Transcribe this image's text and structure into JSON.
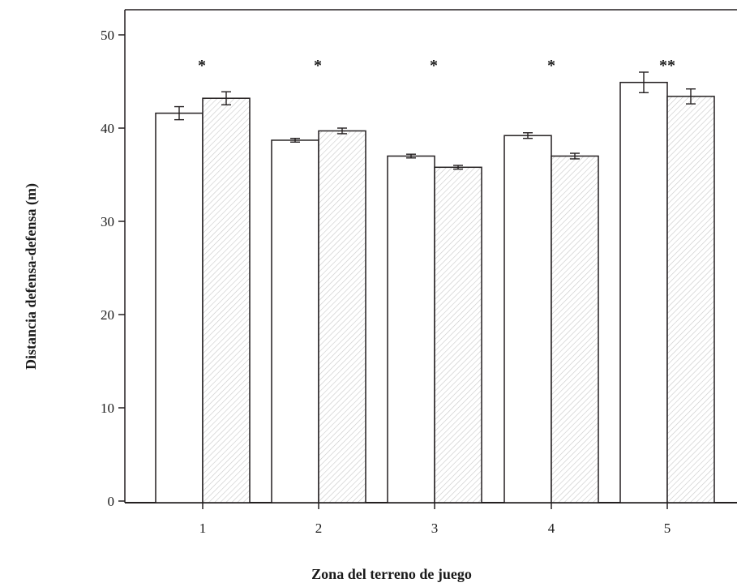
{
  "chart_data": {
    "type": "bar",
    "xlabel": "Zona del terreno de juego",
    "ylabel": "Distancia defensa-defensa (m)",
    "ylim": [
      0,
      52
    ],
    "yticks": [
      "0",
      "10",
      "20",
      "30",
      "40",
      "50"
    ],
    "categories": [
      "1",
      "2",
      "3",
      "4",
      "5"
    ],
    "series": [
      {
        "fill": "#ffffff",
        "pattern": "none",
        "values": [
          41.6,
          38.7,
          37.0,
          39.2,
          44.9
        ],
        "errors": [
          0.7,
          0.2,
          0.2,
          0.3,
          1.1
        ]
      },
      {
        "fill": "#ffffff",
        "pattern": "diagonal-hatch",
        "values": [
          43.2,
          39.7,
          35.8,
          37.0,
          43.4
        ],
        "errors": [
          0.7,
          0.3,
          0.2,
          0.3,
          0.8
        ]
      }
    ],
    "significance": [
      "*",
      "*",
      "*",
      "*",
      "**"
    ],
    "grid": false,
    "legend": "none",
    "colors": {
      "axis": "#231f20",
      "hatch": "#c8c8c8"
    }
  }
}
